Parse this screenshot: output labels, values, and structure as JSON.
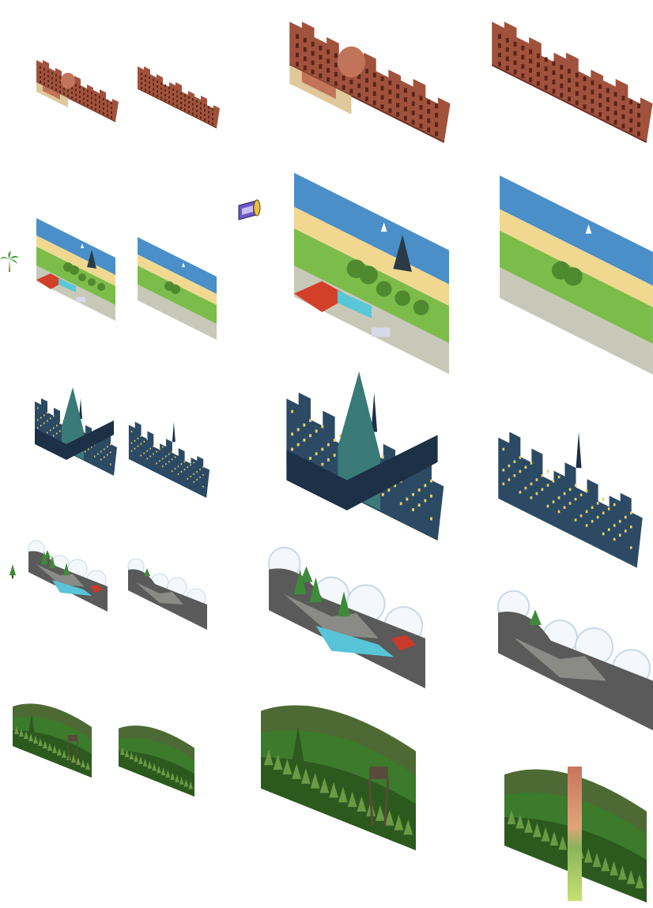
{
  "sheet": {
    "themes": [
      {
        "key": "city-brick",
        "palette": {
          "main": "#a0523c",
          "dark": "#6e3022",
          "light": "#c0745a",
          "window": "#5a2418",
          "accent": "#e0c89a"
        },
        "variants": [
          "preview-with-roof",
          "preview-skyline",
          "large-with-roof",
          "large-skyline"
        ]
      },
      {
        "key": "beach",
        "palette": {
          "sky": "#4a8fc8",
          "sea": "#5aa6dc",
          "sand": "#f0d890",
          "grass": "#7cbc4a",
          "grass_dark": "#4f8a2e",
          "roof": "#d2402a",
          "pool": "#58c8d8",
          "road": "#c8c8b8"
        },
        "variants": [
          "preview-resort",
          "preview-shore",
          "large-resort",
          "large-shore"
        ]
      },
      {
        "key": "city-night",
        "palette": {
          "main": "#2c4a64",
          "dark": "#1c3046",
          "tower": "#3a7a78",
          "window": "#e8d060"
        },
        "variants": [
          "preview-tower",
          "preview-skyline",
          "large-tower",
          "large-skyline"
        ]
      },
      {
        "key": "snow-rocks",
        "palette": {
          "rock": "#5a5a5a",
          "rock_light": "#8a8a86",
          "snow": "#f4f8fc",
          "snow_shade": "#c8d8e8",
          "tree": "#3e8a3a",
          "water": "#58c4d8",
          "cabin": "#c83a2a"
        },
        "variants": [
          "preview-lake",
          "preview-rocks",
          "large-lake",
          "large-rocks"
        ]
      },
      {
        "key": "forest",
        "palette": {
          "back": "#4e6a34",
          "mid": "#3c7a2c",
          "front": "#2c5a1e",
          "light": "#6a9a44",
          "tower": "#5a4a3a"
        },
        "variants": [
          "preview-watchtower",
          "preview-hills",
          "large-watchtower",
          "large-hills"
        ]
      }
    ],
    "extras": {
      "palm_icon": {
        "name": "palm-tree-icon",
        "trunk": "#9a6a2a",
        "leaf": "#3a9a2a"
      },
      "poster_icon": {
        "name": "wallpaper-roll-icon",
        "color": "#6a58c8"
      },
      "pine_icon": {
        "name": "pine-tree-icon",
        "color": "#3e8a3a"
      },
      "scale_bar": {
        "name": "color-scale-bar",
        "top": "#c8745a",
        "mid": "#88b45a",
        "bottom": "#c8e070"
      }
    }
  }
}
